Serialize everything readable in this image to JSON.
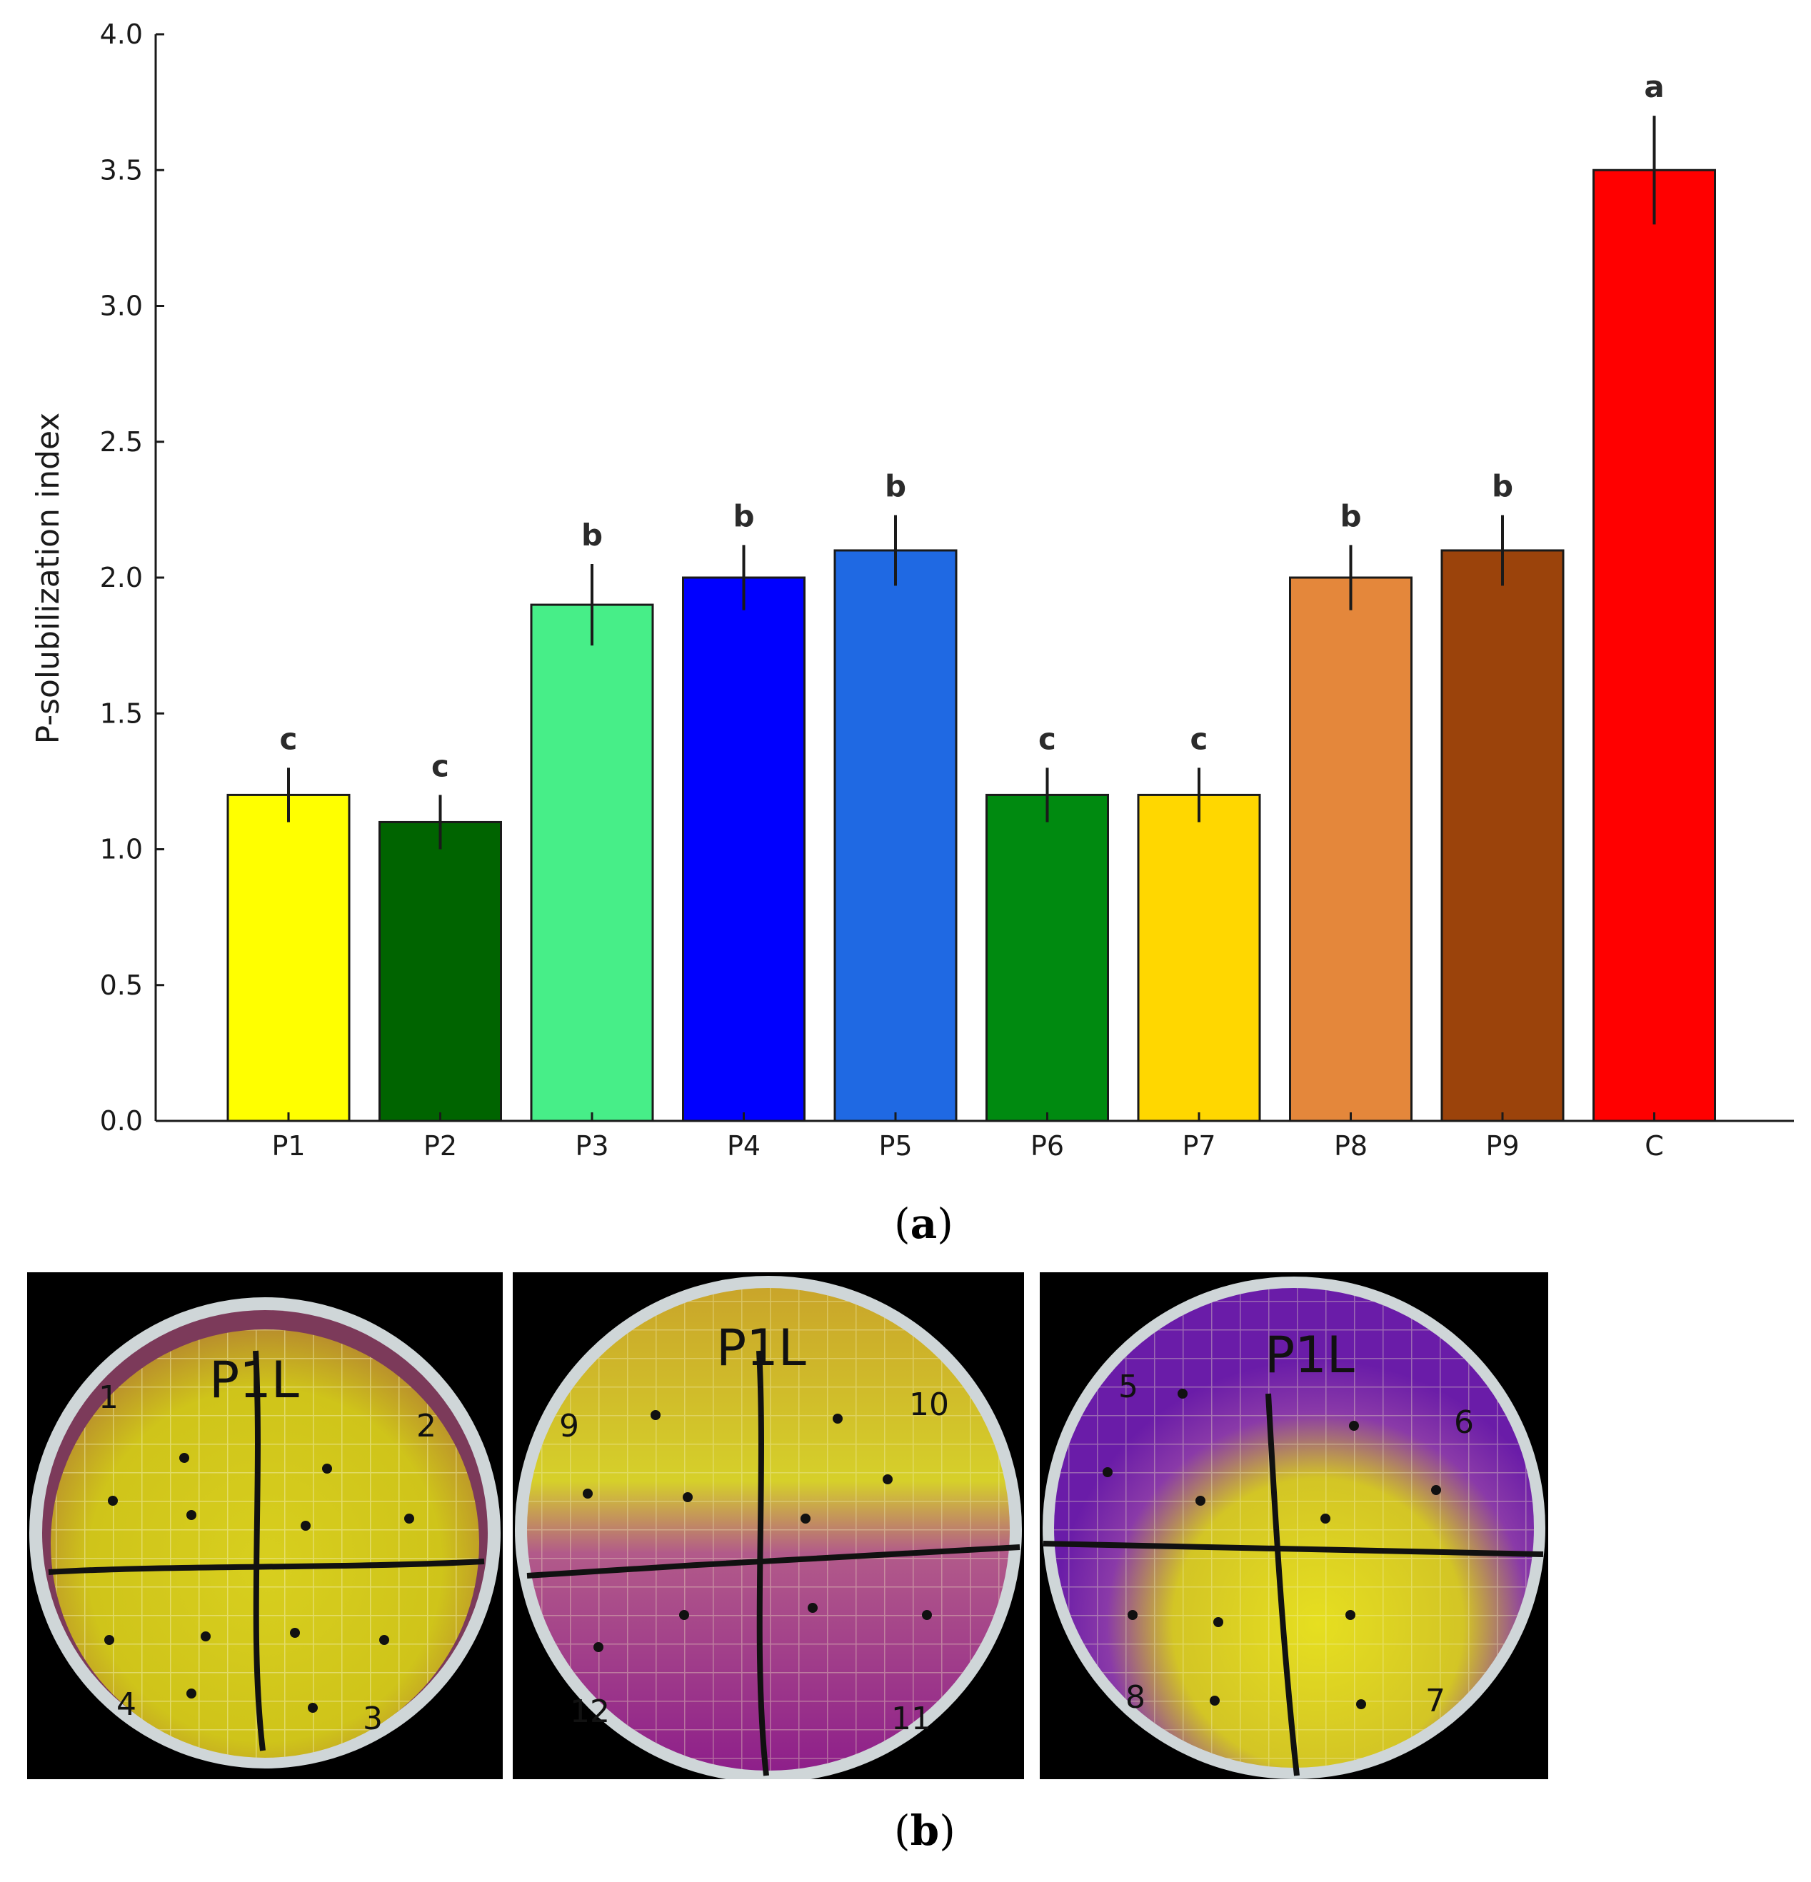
{
  "chart_data": {
    "type": "bar",
    "title": "",
    "xlabel": "",
    "ylabel": "P-solubilization index",
    "ylim": [
      0,
      4.0
    ],
    "yticks": [
      "0.0",
      "0.5",
      "1.0",
      "1.5",
      "2.0",
      "2.5",
      "3.0",
      "3.5",
      "4.0"
    ],
    "categories": [
      "P1",
      "P2",
      "P3",
      "P4",
      "P5",
      "P6",
      "P7",
      "P8",
      "P9",
      "C"
    ],
    "values": [
      1.2,
      1.1,
      1.9,
      2.0,
      2.1,
      1.2,
      1.2,
      2.0,
      2.1,
      3.5
    ],
    "errors": [
      0.1,
      0.1,
      0.15,
      0.12,
      0.13,
      0.1,
      0.1,
      0.12,
      0.13,
      0.2
    ],
    "significance": [
      "c",
      "c",
      "b",
      "b",
      "b",
      "c",
      "c",
      "b",
      "b",
      "a"
    ],
    "colors": [
      "#ffff00",
      "#006400",
      "#47ee88",
      "#0000ff",
      "#1f69e3",
      "#008a10",
      "#ffd700",
      "#e4873b",
      "#9b430b",
      "#ff0000"
    ]
  },
  "captions": {
    "a_open": "(",
    "a_letter": "a",
    "a_close": ")",
    "b_open": "(",
    "b_letter": "b",
    "b_close": ")"
  },
  "plates": [
    {
      "title": "P1L",
      "marks": [
        "1",
        "2",
        "3",
        "4"
      ]
    },
    {
      "title": "P1L",
      "marks": [
        "9",
        "10",
        "11",
        "12"
      ]
    },
    {
      "title": "P1L",
      "marks": [
        "5",
        "6",
        "7",
        "8"
      ]
    }
  ]
}
